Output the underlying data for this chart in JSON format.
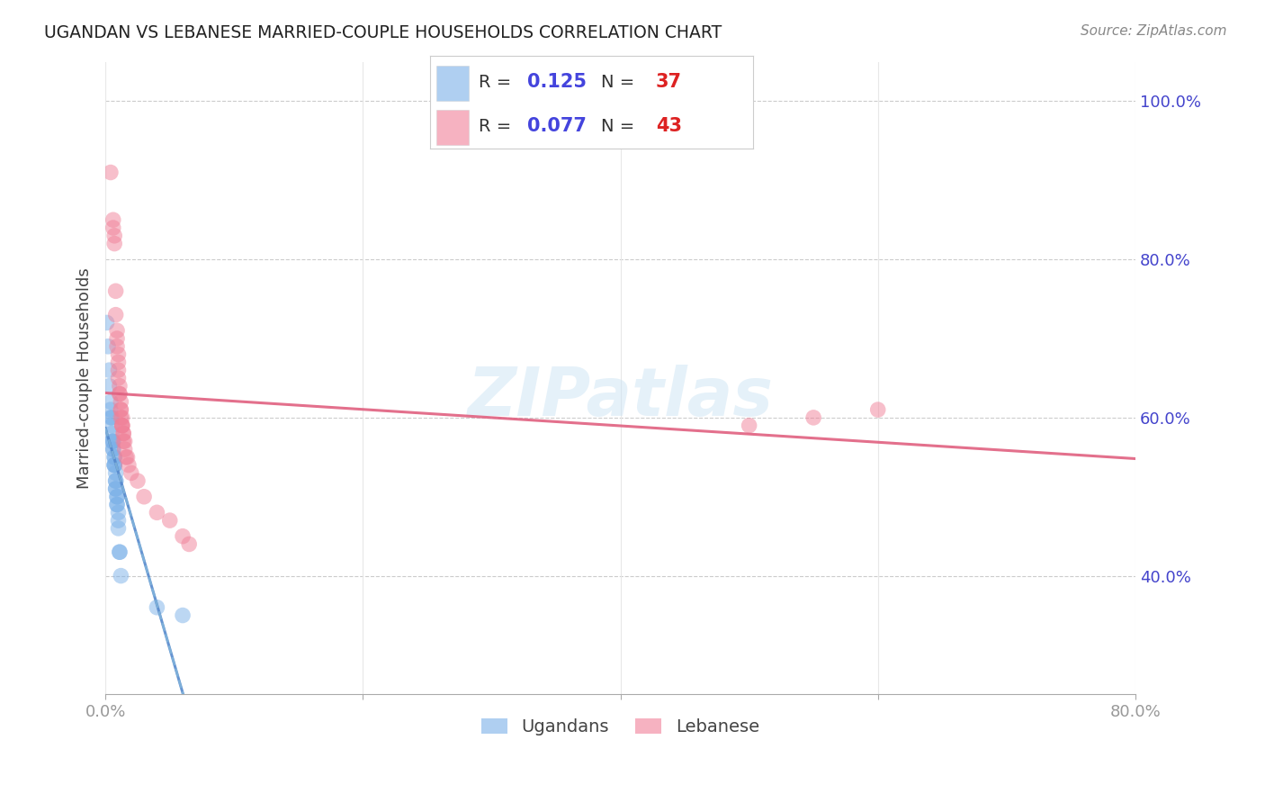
{
  "title": "UGANDAN VS LEBANESE MARRIED-COUPLE HOUSEHOLDS CORRELATION CHART",
  "source": "Source: ZipAtlas.com",
  "ylabel": "Married-couple Households",
  "yticks_labels": [
    "40.0%",
    "60.0%",
    "80.0%",
    "100.0%"
  ],
  "ytick_vals": [
    0.4,
    0.6,
    0.8,
    1.0
  ],
  "xlim": [
    0.0,
    0.8
  ],
  "ylim": [
    0.25,
    1.05
  ],
  "watermark": "ZIPatlas",
  "ugandan_color": "#7ab0e8",
  "lebanese_color": "#f08098",
  "ugandan_scatter": [
    [
      0.001,
      0.72
    ],
    [
      0.002,
      0.69
    ],
    [
      0.003,
      0.66
    ],
    [
      0.003,
      0.64
    ],
    [
      0.004,
      0.62
    ],
    [
      0.004,
      0.61
    ],
    [
      0.004,
      0.6
    ],
    [
      0.005,
      0.6
    ],
    [
      0.005,
      0.59
    ],
    [
      0.005,
      0.58
    ],
    [
      0.005,
      0.57
    ],
    [
      0.006,
      0.57
    ],
    [
      0.006,
      0.57
    ],
    [
      0.006,
      0.56
    ],
    [
      0.006,
      0.56
    ],
    [
      0.007,
      0.55
    ],
    [
      0.007,
      0.55
    ],
    [
      0.007,
      0.54
    ],
    [
      0.007,
      0.54
    ],
    [
      0.007,
      0.54
    ],
    [
      0.008,
      0.53
    ],
    [
      0.008,
      0.52
    ],
    [
      0.008,
      0.52
    ],
    [
      0.008,
      0.51
    ],
    [
      0.008,
      0.51
    ],
    [
      0.009,
      0.5
    ],
    [
      0.009,
      0.5
    ],
    [
      0.009,
      0.49
    ],
    [
      0.009,
      0.49
    ],
    [
      0.01,
      0.48
    ],
    [
      0.01,
      0.47
    ],
    [
      0.01,
      0.46
    ],
    [
      0.011,
      0.43
    ],
    [
      0.011,
      0.43
    ],
    [
      0.012,
      0.4
    ],
    [
      0.04,
      0.36
    ],
    [
      0.06,
      0.35
    ]
  ],
  "lebanese_scatter": [
    [
      0.004,
      0.91
    ],
    [
      0.006,
      0.85
    ],
    [
      0.006,
      0.84
    ],
    [
      0.007,
      0.83
    ],
    [
      0.007,
      0.82
    ],
    [
      0.008,
      0.76
    ],
    [
      0.008,
      0.73
    ],
    [
      0.009,
      0.71
    ],
    [
      0.009,
      0.7
    ],
    [
      0.009,
      0.69
    ],
    [
      0.01,
      0.68
    ],
    [
      0.01,
      0.67
    ],
    [
      0.01,
      0.66
    ],
    [
      0.01,
      0.65
    ],
    [
      0.011,
      0.64
    ],
    [
      0.011,
      0.63
    ],
    [
      0.011,
      0.63
    ],
    [
      0.012,
      0.62
    ],
    [
      0.012,
      0.61
    ],
    [
      0.012,
      0.61
    ],
    [
      0.012,
      0.6
    ],
    [
      0.013,
      0.6
    ],
    [
      0.013,
      0.59
    ],
    [
      0.013,
      0.59
    ],
    [
      0.013,
      0.59
    ],
    [
      0.014,
      0.58
    ],
    [
      0.014,
      0.58
    ],
    [
      0.014,
      0.57
    ],
    [
      0.015,
      0.57
    ],
    [
      0.015,
      0.56
    ],
    [
      0.016,
      0.55
    ],
    [
      0.017,
      0.55
    ],
    [
      0.018,
      0.54
    ],
    [
      0.02,
      0.53
    ],
    [
      0.025,
      0.52
    ],
    [
      0.03,
      0.5
    ],
    [
      0.04,
      0.48
    ],
    [
      0.05,
      0.47
    ],
    [
      0.06,
      0.45
    ],
    [
      0.065,
      0.44
    ],
    [
      0.5,
      0.59
    ],
    [
      0.55,
      0.6
    ],
    [
      0.6,
      0.61
    ]
  ],
  "background_color": "#ffffff",
  "grid_color": "#cccccc",
  "title_color": "#222222",
  "source_color": "#888888",
  "tick_color": "#4444cc"
}
